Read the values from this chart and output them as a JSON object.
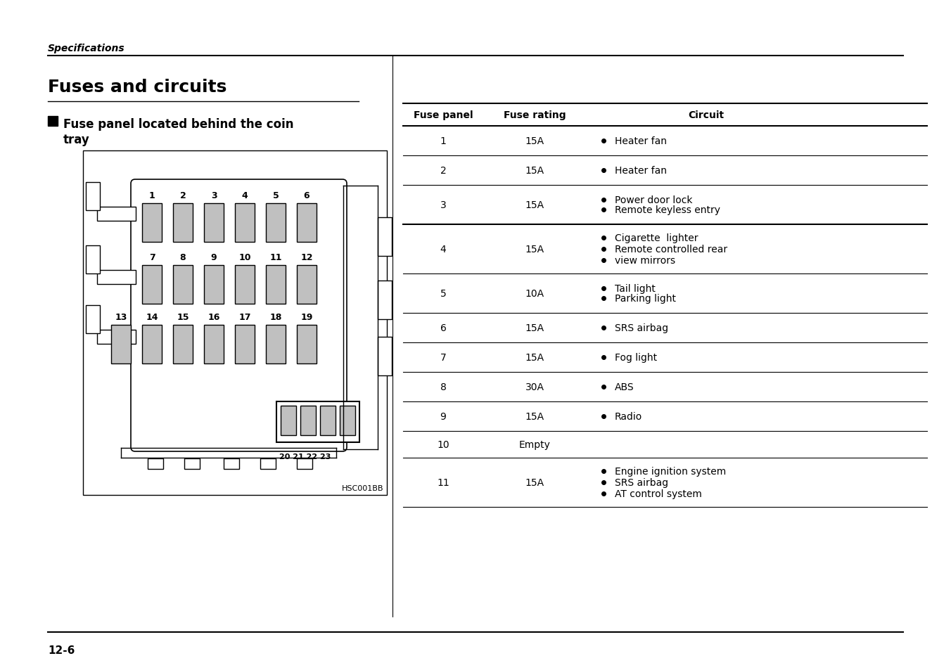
{
  "page_header": "Specifications",
  "title": "Fuses and circuits",
  "subtitle_line1": "Fuse panel located behind the coin",
  "subtitle_line2": "tray",
  "image_caption": "HSC001BB",
  "page_number": "12-6",
  "table_headers": [
    "Fuse panel",
    "Fuse rating",
    "Circuit"
  ],
  "table_data": [
    {
      "panel": "1",
      "rating": "15A",
      "circuits": [
        "Heater fan"
      ]
    },
    {
      "panel": "2",
      "rating": "15A",
      "circuits": [
        "Heater fan"
      ]
    },
    {
      "panel": "3",
      "rating": "15A",
      "circuits": [
        "Power door lock",
        "Remote keyless entry"
      ]
    },
    {
      "panel": "4",
      "rating": "15A",
      "circuits": [
        "Cigarette  lighter",
        "Remote controlled rear",
        "view mirrors"
      ]
    },
    {
      "panel": "5",
      "rating": "10A",
      "circuits": [
        "Tail light",
        "Parking light"
      ]
    },
    {
      "panel": "6",
      "rating": "15A",
      "circuits": [
        "SRS airbag"
      ]
    },
    {
      "panel": "7",
      "rating": "15A",
      "circuits": [
        "Fog light"
      ]
    },
    {
      "panel": "8",
      "rating": "30A",
      "circuits": [
        "ABS"
      ]
    },
    {
      "panel": "9",
      "rating": "15A",
      "circuits": [
        "Radio"
      ]
    },
    {
      "panel": "10",
      "rating": "Empty",
      "circuits": []
    },
    {
      "panel": "11",
      "rating": "15A",
      "circuits": [
        "Engine ignition system",
        "SRS airbag",
        "AT control system"
      ]
    }
  ],
  "small_fuses": [
    "20",
    "21",
    "22",
    "23"
  ],
  "bg_color": "#ffffff",
  "fuse_color": "#c0c0c0",
  "text_color": "#000000"
}
